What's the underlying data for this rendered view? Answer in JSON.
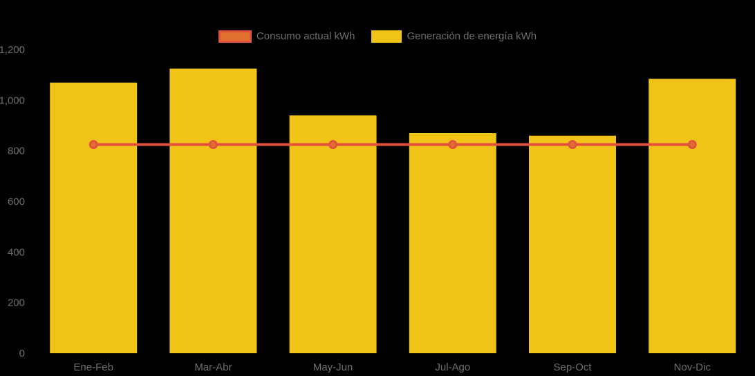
{
  "chart_data": {
    "type": "bar",
    "title": "",
    "xlabel": "",
    "ylabel": "",
    "categories": [
      "Ene-Feb",
      "Mar-Abr",
      "May-Jun",
      "Jul-Ago",
      "Sep-Oct",
      "Nov-Dic"
    ],
    "series": [
      {
        "name": "Consumo actual kWh",
        "type": "line",
        "values": [
          825,
          825,
          825,
          825,
          825,
          825
        ],
        "color": "#E2513C",
        "marker_fill": "#E07030"
      },
      {
        "name": "Generación de energía kWh",
        "type": "bar",
        "values": [
          1070,
          1125,
          940,
          870,
          860,
          1085
        ],
        "color": "#F0C316"
      }
    ],
    "ylim": [
      0,
      1200
    ],
    "ytick_step": 200,
    "ytick_labels": [
      "0",
      "200",
      "400",
      "600",
      "800",
      "1,000",
      "1,200"
    ],
    "grid": false,
    "legend_position": "top",
    "background_color": "#000000",
    "text_color": "#6E6E6E"
  }
}
